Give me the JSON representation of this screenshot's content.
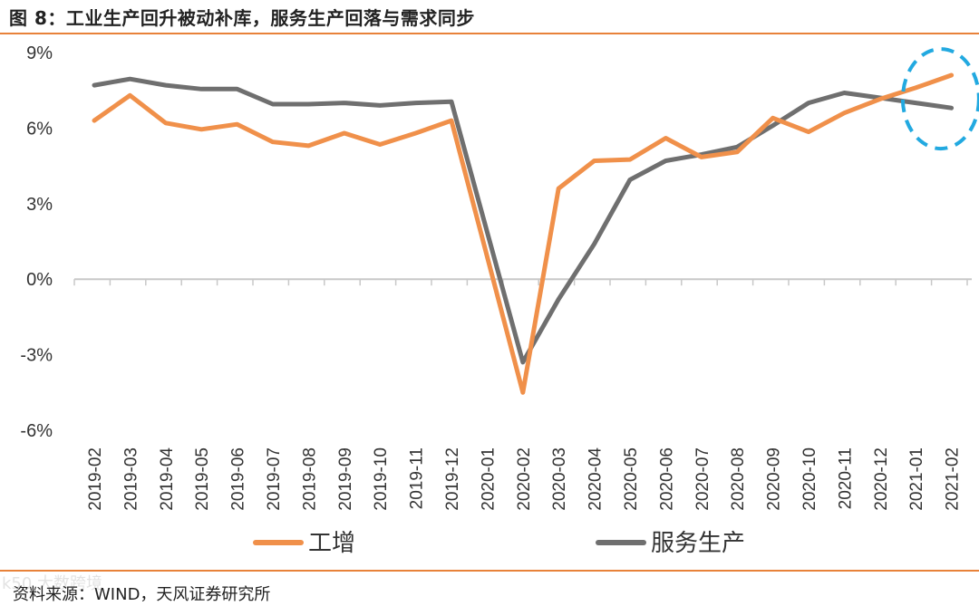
{
  "figure": {
    "title": "图 8：工业生产回升被动补库，服务生产回落与需求同步",
    "source": "资料来源：WIND，天风证券研究所",
    "watermark": "k50 大数跨境"
  },
  "colors": {
    "industrial": "#F0904A",
    "services": "#6F6F6F",
    "highlight": "#22A9E0",
    "rule": "#E8823A",
    "axis": "#C8C8C8"
  },
  "chart_data": {
    "type": "line",
    "title": "工业生产回升被动补库，服务生产回落与需求同步",
    "xlabel": "",
    "ylabel": "",
    "ylim": [
      -6,
      9
    ],
    "yticks": [
      9,
      6,
      3,
      0,
      -3,
      -6
    ],
    "ytick_labels": [
      "9%",
      "6%",
      "3%",
      "0%",
      "-3%",
      "-6%"
    ],
    "grid": false,
    "legend_position": "bottom",
    "categories": [
      "2019-02",
      "2019-03",
      "2019-04",
      "2019-05",
      "2019-06",
      "2019-07",
      "2019-08",
      "2019-09",
      "2019-10",
      "2019-11",
      "2019-12",
      "2020-01",
      "2020-02",
      "2020-03",
      "2020-04",
      "2020-05",
      "2020-06",
      "2020-07",
      "2020-08",
      "2020-09",
      "2020-10",
      "2020-11",
      "2020-12",
      "2021-01",
      "2021-02"
    ],
    "series": [
      {
        "name": "工增",
        "color": "#F0904A",
        "values": [
          6.3,
          7.3,
          6.2,
          5.95,
          6.15,
          5.45,
          5.3,
          5.8,
          5.35,
          5.8,
          6.3,
          null,
          -4.5,
          3.6,
          4.7,
          4.75,
          5.6,
          4.85,
          5.05,
          6.4,
          5.85,
          6.6,
          7.15,
          7.6,
          8.1
        ]
      },
      {
        "name": "服务生产",
        "color": "#6F6F6F",
        "values": [
          7.7,
          7.95,
          7.7,
          7.55,
          7.55,
          6.95,
          6.95,
          7.0,
          6.9,
          7.0,
          7.05,
          null,
          -3.3,
          -0.8,
          1.4,
          3.95,
          4.7,
          4.95,
          5.25,
          6.1,
          7.0,
          7.4,
          7.2,
          7.0,
          6.8
        ]
      }
    ],
    "annotation": {
      "type": "dashed-ellipse",
      "around": "2021-01 to 2021-02"
    }
  }
}
